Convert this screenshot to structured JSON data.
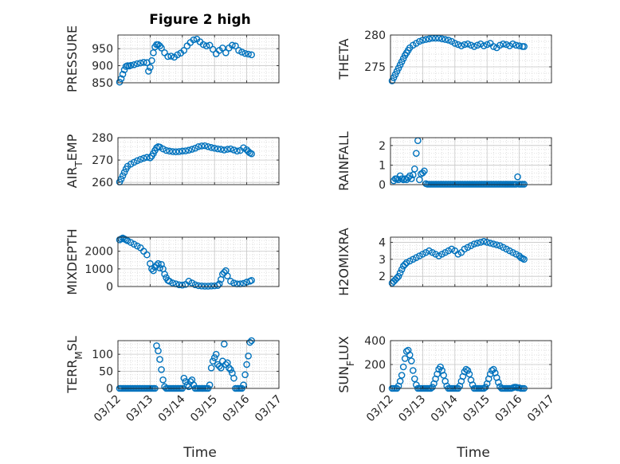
{
  "figure": {
    "title": "Figure 2 high",
    "xlabel": "Time",
    "xticks": [
      "03/12",
      "03/13",
      "03/14",
      "03/15",
      "03/16",
      "03/17"
    ],
    "marker_color": "#0072BD"
  },
  "chart_data": [
    {
      "type": "scatter",
      "ylabel": "PRESSURE",
      "xlim": [
        0,
        5
      ],
      "ylim": [
        850,
        990
      ],
      "yticks": [
        "850",
        "900",
        "950"
      ],
      "x": [
        0.05,
        0.1,
        0.15,
        0.2,
        0.25,
        0.3,
        0.35,
        0.4,
        0.5,
        0.6,
        0.7,
        0.8,
        0.9,
        0.95,
        1.0,
        1.05,
        1.1,
        1.15,
        1.2,
        1.25,
        1.3,
        1.35,
        1.45,
        1.55,
        1.65,
        1.75,
        1.85,
        1.95,
        2.05,
        2.15,
        2.25,
        2.35,
        2.45,
        2.55,
        2.65,
        2.75,
        2.85,
        2.95,
        3.05,
        3.15,
        3.25,
        3.35,
        3.45,
        3.55,
        3.65,
        3.75,
        3.85,
        3.95,
        4.05,
        4.15
      ],
      "y": [
        852,
        862,
        875,
        888,
        898,
        900,
        899,
        901,
        903,
        906,
        908,
        910,
        909,
        884,
        895,
        915,
        938,
        955,
        962,
        962,
        958,
        952,
        938,
        927,
        928,
        925,
        932,
        937,
        945,
        958,
        968,
        976,
        978,
        970,
        962,
        958,
        960,
        948,
        935,
        945,
        952,
        938,
        952,
        960,
        958,
        945,
        940,
        936,
        934,
        932
      ]
    },
    {
      "type": "scatter",
      "ylabel": "THETA",
      "xlim": [
        0,
        5
      ],
      "ylim": [
        272.5,
        280
      ],
      "yticks": [
        "275",
        "280"
      ],
      "x": [
        0.05,
        0.1,
        0.15,
        0.2,
        0.25,
        0.3,
        0.35,
        0.4,
        0.45,
        0.5,
        0.55,
        0.6,
        0.7,
        0.8,
        0.9,
        1.0,
        1.1,
        1.2,
        1.3,
        1.4,
        1.5,
        1.6,
        1.7,
        1.8,
        1.9,
        2.0,
        2.1,
        2.2,
        2.3,
        2.4,
        2.5,
        2.6,
        2.7,
        2.8,
        2.9,
        3.0,
        3.1,
        3.2,
        3.3,
        3.4,
        3.5,
        3.6,
        3.7,
        3.8,
        3.9,
        4.0,
        4.1,
        4.15
      ],
      "y": [
        272.8,
        273.3,
        273.8,
        274.3,
        274.8,
        275.3,
        275.8,
        276.3,
        276.8,
        277.2,
        277.6,
        278.0,
        278.4,
        278.7,
        279.0,
        279.2,
        279.3,
        279.4,
        279.5,
        279.5,
        279.5,
        279.4,
        279.3,
        279.2,
        279.0,
        278.7,
        278.5,
        278.3,
        278.5,
        278.6,
        278.4,
        278.2,
        278.4,
        278.6,
        278.3,
        278.5,
        278.7,
        278.2,
        278.0,
        278.4,
        278.6,
        278.5,
        278.3,
        278.6,
        278.4,
        278.3,
        278.2,
        278.2
      ]
    },
    {
      "type": "scatter",
      "ylabel": "AIR_TEMP",
      "xlim": [
        0,
        5
      ],
      "ylim": [
        259,
        280
      ],
      "yticks": [
        "260",
        "270",
        "280"
      ],
      "x": [
        0.05,
        0.1,
        0.15,
        0.2,
        0.25,
        0.3,
        0.4,
        0.5,
        0.6,
        0.7,
        0.8,
        0.9,
        1.0,
        1.05,
        1.1,
        1.15,
        1.2,
        1.25,
        1.3,
        1.4,
        1.5,
        1.6,
        1.7,
        1.8,
        1.9,
        2.0,
        2.1,
        2.2,
        2.3,
        2.4,
        2.5,
        2.6,
        2.7,
        2.8,
        2.9,
        3.0,
        3.1,
        3.2,
        3.3,
        3.4,
        3.5,
        3.6,
        3.7,
        3.8,
        3.9,
        4.0,
        4.05,
        4.1,
        4.15
      ],
      "y": [
        260.2,
        261.5,
        263,
        264.5,
        266,
        267.2,
        268.2,
        269,
        269.7,
        270.3,
        270.8,
        271.2,
        271,
        271.8,
        273,
        274.3,
        275.5,
        276,
        275.8,
        275,
        274.3,
        274,
        273.8,
        273.7,
        273.8,
        274,
        274.1,
        274.4,
        274.8,
        275.3,
        276,
        276.3,
        276.4,
        276,
        275.6,
        275.3,
        275,
        274.8,
        274.5,
        274.8,
        275,
        274.5,
        274,
        274.3,
        275.5,
        274.6,
        273.8,
        273.2,
        272.8
      ]
    },
    {
      "type": "scatter",
      "ylabel": "RAINFALL",
      "xlim": [
        0,
        5
      ],
      "ylim": [
        0,
        2.4
      ],
      "yticks": [
        "0",
        "1",
        "2"
      ],
      "x": [
        0.1,
        0.15,
        0.2,
        0.25,
        0.3,
        0.35,
        0.4,
        0.45,
        0.5,
        0.55,
        0.6,
        0.65,
        0.7,
        0.75,
        0.8,
        0.85,
        0.9,
        0.95,
        1.0,
        1.05,
        1.1,
        1.15,
        1.2,
        1.25,
        1.3,
        1.35,
        1.4,
        1.45,
        1.5,
        1.55,
        1.6,
        1.65,
        1.7,
        1.75,
        1.8,
        1.85,
        1.9,
        1.95,
        2.0,
        2.05,
        2.1,
        2.15,
        2.2,
        2.25,
        2.3,
        2.35,
        2.4,
        2.45,
        2.5,
        2.55,
        2.6,
        2.65,
        2.7,
        2.75,
        2.8,
        2.85,
        2.9,
        2.95,
        3.0,
        3.05,
        3.1,
        3.15,
        3.2,
        3.25,
        3.3,
        3.35,
        3.4,
        3.45,
        3.5,
        3.55,
        3.6,
        3.65,
        3.7,
        3.75,
        3.8,
        3.85,
        3.9,
        3.95,
        4.0,
        4.05,
        4.1,
        4.15
      ],
      "y": [
        0.2,
        0.3,
        0.3,
        0.25,
        0.45,
        0.3,
        0.25,
        0.3,
        0.25,
        0.35,
        0.45,
        0.3,
        0.5,
        0.8,
        1.6,
        2.25,
        0.25,
        0.55,
        0.6,
        0.7,
        0.05,
        0.02,
        0.02,
        0.02,
        0.02,
        0.02,
        0.02,
        0.02,
        0.02,
        0.02,
        0.02,
        0.02,
        0.02,
        0.02,
        0.02,
        0.02,
        0.02,
        0.02,
        0.02,
        0.02,
        0.02,
        0.02,
        0.02,
        0.02,
        0.02,
        0.02,
        0.02,
        0.02,
        0.02,
        0.02,
        0.02,
        0.02,
        0.02,
        0.02,
        0.02,
        0.02,
        0.02,
        0.02,
        0.02,
        0.02,
        0.02,
        0.02,
        0.02,
        0.02,
        0.02,
        0.02,
        0.02,
        0.02,
        0.02,
        0.02,
        0.02,
        0.02,
        0.02,
        0.02,
        0.02,
        0.02,
        0.02,
        0.4,
        0.02,
        0.02,
        0.02,
        0.02
      ]
    },
    {
      "type": "scatter",
      "ylabel": "MIXDEPTH",
      "xlim": [
        0,
        5
      ],
      "ylim": [
        0,
        2800
      ],
      "yticks": [
        "0",
        "1000",
        "2000"
      ],
      "x": [
        0.05,
        0.1,
        0.15,
        0.2,
        0.25,
        0.3,
        0.4,
        0.5,
        0.6,
        0.7,
        0.8,
        0.9,
        1.0,
        1.05,
        1.1,
        1.15,
        1.2,
        1.25,
        1.3,
        1.35,
        1.4,
        1.45,
        1.5,
        1.55,
        1.6,
        1.7,
        1.8,
        1.9,
        2.0,
        2.1,
        2.2,
        2.3,
        2.4,
        2.5,
        2.6,
        2.7,
        2.8,
        2.9,
        3.0,
        3.1,
        3.15,
        3.2,
        3.25,
        3.3,
        3.35,
        3.4,
        3.5,
        3.6,
        3.7,
        3.8,
        3.9,
        4.0,
        4.1,
        4.15
      ],
      "y": [
        2650,
        2700,
        2750,
        2700,
        2650,
        2600,
        2500,
        2400,
        2300,
        2200,
        2000,
        1800,
        1300,
        1000,
        900,
        1100,
        1200,
        1300,
        1050,
        1250,
        1000,
        700,
        500,
        350,
        300,
        200,
        150,
        100,
        80,
        120,
        300,
        200,
        100,
        50,
        30,
        20,
        20,
        30,
        40,
        60,
        150,
        400,
        700,
        800,
        900,
        600,
        300,
        200,
        150,
        150,
        180,
        250,
        300,
        350
      ]
    },
    {
      "type": "scatter",
      "ylabel": "H2OMIXRA",
      "xlim": [
        0,
        5
      ],
      "ylim": [
        1.4,
        4.3
      ],
      "yticks": [
        "2",
        "3",
        "4"
      ],
      "x": [
        0.05,
        0.1,
        0.15,
        0.2,
        0.25,
        0.3,
        0.35,
        0.4,
        0.45,
        0.5,
        0.6,
        0.7,
        0.8,
        0.9,
        1.0,
        1.1,
        1.2,
        1.3,
        1.4,
        1.5,
        1.6,
        1.7,
        1.8,
        1.9,
        2.0,
        2.1,
        2.2,
        2.3,
        2.4,
        2.5,
        2.6,
        2.7,
        2.8,
        2.9,
        3.0,
        3.1,
        3.2,
        3.3,
        3.4,
        3.5,
        3.6,
        3.7,
        3.8,
        3.9,
        4.0,
        4.05,
        4.1,
        4.15
      ],
      "y": [
        1.6,
        1.7,
        1.8,
        1.9,
        2.0,
        2.2,
        2.4,
        2.6,
        2.7,
        2.8,
        2.9,
        3.0,
        3.1,
        3.2,
        3.3,
        3.4,
        3.5,
        3.4,
        3.3,
        3.2,
        3.3,
        3.4,
        3.5,
        3.6,
        3.5,
        3.3,
        3.4,
        3.6,
        3.7,
        3.8,
        3.9,
        3.95,
        4.0,
        4.05,
        4.0,
        3.95,
        3.9,
        3.85,
        3.8,
        3.7,
        3.6,
        3.5,
        3.4,
        3.3,
        3.2,
        3.1,
        3.05,
        3.0
      ]
    },
    {
      "type": "scatter",
      "ylabel": "TERR_MSL",
      "xlim": [
        0,
        5
      ],
      "ylim": [
        0,
        140
      ],
      "yticks": [
        "0",
        "50",
        "100"
      ],
      "x": [
        0.05,
        0.1,
        0.15,
        0.2,
        0.25,
        0.3,
        0.35,
        0.4,
        0.45,
        0.5,
        0.55,
        0.6,
        0.65,
        0.7,
        0.75,
        0.8,
        0.85,
        0.9,
        0.95,
        1.0,
        1.05,
        1.1,
        1.15,
        1.2,
        1.25,
        1.3,
        1.35,
        1.4,
        1.45,
        1.5,
        1.55,
        1.6,
        1.65,
        1.7,
        1.75,
        1.8,
        1.85,
        1.9,
        1.95,
        2.0,
        2.05,
        2.1,
        2.15,
        2.2,
        2.25,
        2.3,
        2.35,
        2.4,
        2.45,
        2.5,
        2.55,
        2.6,
        2.65,
        2.7,
        2.75,
        2.8,
        2.85,
        2.9,
        2.95,
        3.0,
        3.05,
        3.1,
        3.15,
        3.2,
        3.25,
        3.3,
        3.35,
        3.4,
        3.45,
        3.5,
        3.55,
        3.6,
        3.65,
        3.7,
        3.75,
        3.8,
        3.85,
        3.9,
        3.95,
        4.0,
        4.05,
        4.1,
        4.15
      ],
      "y": [
        0,
        0,
        0,
        0,
        0,
        0,
        0,
        0,
        0,
        0,
        0,
        0,
        0,
        0,
        0,
        0,
        0,
        0,
        0,
        0,
        0,
        0,
        0,
        125,
        110,
        85,
        55,
        25,
        5,
        0,
        0,
        0,
        0,
        0,
        0,
        0,
        0,
        0,
        0,
        0,
        30,
        20,
        10,
        5,
        20,
        25,
        10,
        0,
        0,
        0,
        0,
        0,
        0,
        0,
        0,
        0,
        10,
        60,
        80,
        90,
        100,
        70,
        65,
        60,
        80,
        130,
        70,
        75,
        60,
        55,
        45,
        30,
        0,
        0,
        0,
        0,
        0,
        10,
        40,
        70,
        95,
        135,
        140
      ]
    },
    {
      "type": "scatter",
      "ylabel": "SUN_FLUX",
      "xlim": [
        0,
        5
      ],
      "ylim": [
        0,
        400
      ],
      "yticks": [
        "0",
        "200",
        "400"
      ],
      "x": [
        0.05,
        0.1,
        0.15,
        0.2,
        0.25,
        0.3,
        0.35,
        0.4,
        0.45,
        0.5,
        0.55,
        0.6,
        0.65,
        0.7,
        0.75,
        0.8,
        0.85,
        0.9,
        0.95,
        1.0,
        1.05,
        1.1,
        1.15,
        1.2,
        1.25,
        1.3,
        1.35,
        1.4,
        1.45,
        1.5,
        1.55,
        1.6,
        1.65,
        1.7,
        1.75,
        1.8,
        1.85,
        1.9,
        1.95,
        2.0,
        2.05,
        2.1,
        2.15,
        2.2,
        2.25,
        2.3,
        2.35,
        2.4,
        2.45,
        2.5,
        2.55,
        2.6,
        2.65,
        2.7,
        2.75,
        2.8,
        2.85,
        2.9,
        2.95,
        3.0,
        3.05,
        3.1,
        3.15,
        3.2,
        3.25,
        3.3,
        3.35,
        3.4,
        3.45,
        3.5,
        3.55,
        3.6,
        3.65,
        3.7,
        3.75,
        3.8,
        3.85,
        3.9,
        3.95,
        4.0,
        4.05,
        4.1,
        4.15
      ],
      "y": [
        0,
        0,
        0,
        0,
        20,
        60,
        110,
        180,
        250,
        310,
        320,
        280,
        230,
        150,
        80,
        30,
        0,
        0,
        0,
        0,
        0,
        0,
        0,
        0,
        0,
        10,
        40,
        80,
        120,
        160,
        180,
        150,
        110,
        60,
        20,
        0,
        0,
        0,
        0,
        0,
        0,
        0,
        20,
        60,
        100,
        140,
        160,
        150,
        120,
        70,
        30,
        0,
        0,
        0,
        0,
        0,
        0,
        0,
        10,
        40,
        80,
        120,
        150,
        160,
        130,
        90,
        50,
        15,
        0,
        0,
        0,
        0,
        0,
        0,
        0,
        5,
        10,
        10,
        5,
        5,
        0,
        0,
        0
      ]
    }
  ]
}
